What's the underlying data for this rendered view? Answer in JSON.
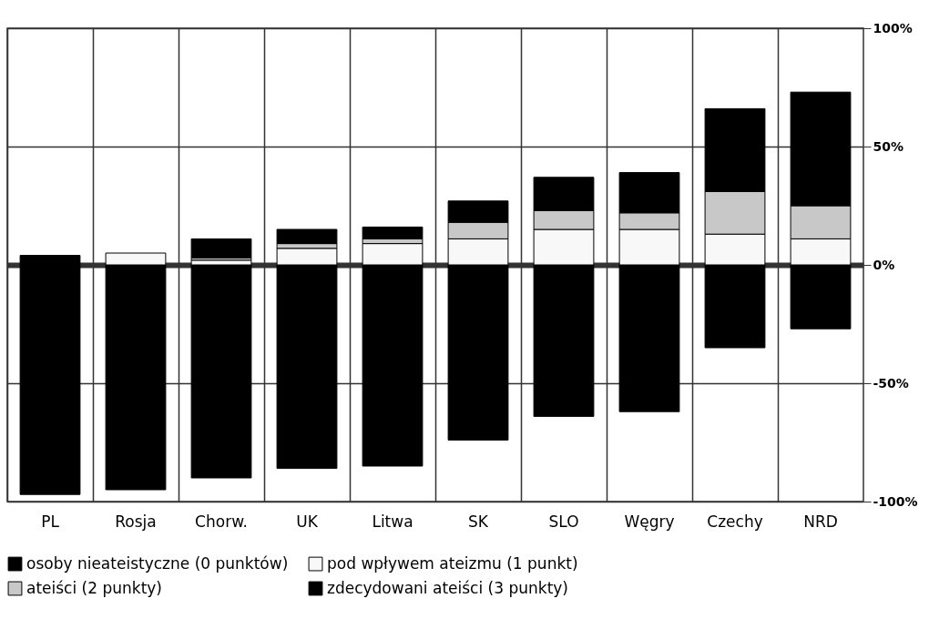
{
  "chart_data": {
    "type": "bar",
    "stacked": true,
    "categories": [
      "PL",
      "Rosja",
      "Chorw.",
      "UK",
      "Litwa",
      "SK",
      "SLO",
      "Węgry",
      "Czechy",
      "NRD"
    ],
    "series": [
      {
        "name": "osoby nieateistyczne (0 punktów)",
        "color": "#000000",
        "values": [
          -97,
          -95,
          -90,
          -86,
          -85,
          -74,
          -64,
          -62,
          -35,
          -27
        ]
      },
      {
        "name": "pod wpływem ateizmu (1 punkt)",
        "color": "#f8f8f8",
        "values": [
          null,
          5,
          2,
          7,
          9,
          11,
          15,
          15,
          13,
          11
        ]
      },
      {
        "name": "ateiści (2 punkty)",
        "color": "#c8c8c8",
        "values": [
          null,
          null,
          1,
          2,
          2,
          7,
          8,
          7,
          18,
          14
        ]
      },
      {
        "name": "zdecydowani ateiści (3 punkty)",
        "color": "#000000",
        "values": [
          4,
          null,
          8,
          6,
          5,
          9,
          14,
          17,
          35,
          48
        ]
      }
    ],
    "ylim": [
      -100,
      100
    ],
    "yticks": [
      {
        "value": -100,
        "label": "-100%"
      },
      {
        "value": -50,
        "label": "-50%"
      },
      {
        "value": 0,
        "label": "0%"
      },
      {
        "value": 50,
        "label": "50%"
      },
      {
        "value": 100,
        "label": "100%"
      }
    ],
    "grid": true,
    "legend": "bottom"
  }
}
